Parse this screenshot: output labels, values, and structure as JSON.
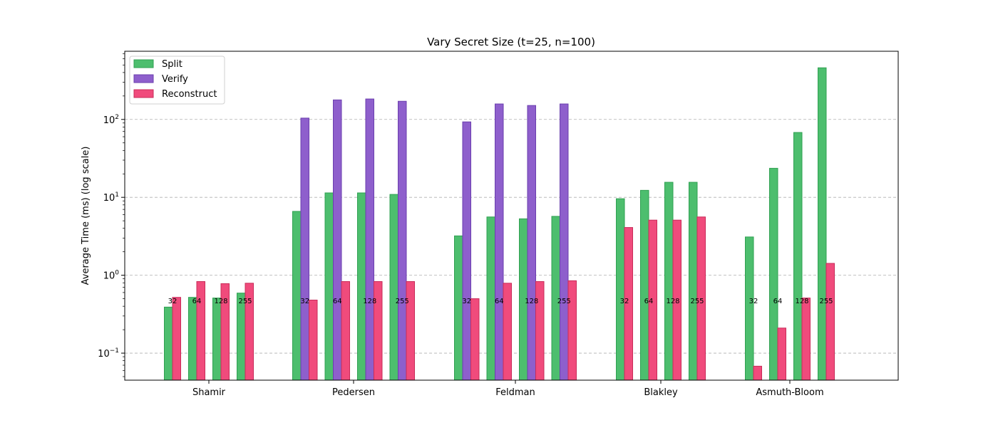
{
  "colors": {
    "split": "#4dbe6e",
    "split_edge": "#2fa051",
    "verify": "#8e5fcc",
    "verify_edge": "#6b3fae",
    "reconstruct": "#f04b7c",
    "reconstruct_edge": "#c92c59",
    "grid": "#b0b0b0"
  },
  "chart_data": {
    "type": "bar",
    "title": "Vary Secret Size (t=25, n=100)",
    "xlabel": "",
    "ylabel": "Average Time (ms) (log scale)",
    "yscale": "log",
    "ylim": [
      0.045,
      750
    ],
    "yticks": [
      {
        "value": 0.1,
        "base": "10",
        "exp": "−1"
      },
      {
        "value": 1,
        "base": "10",
        "exp": "0"
      },
      {
        "value": 10,
        "base": "10",
        "exp": "1"
      },
      {
        "value": 100,
        "base": "10",
        "exp": "2"
      }
    ],
    "grid": "y-major-dashed",
    "legend_position": "top-left",
    "series": [
      {
        "key": "split",
        "name": "Split"
      },
      {
        "key": "verify",
        "name": "Verify"
      },
      {
        "key": "reconstruct",
        "name": "Reconstruct"
      }
    ],
    "secret_sizes": [
      "32",
      "64",
      "128",
      "255"
    ],
    "groups": [
      {
        "scheme": "Shamir",
        "values": [
          {
            "size": "32",
            "split": 0.39,
            "reconstruct": 0.52
          },
          {
            "size": "64",
            "split": 0.52,
            "reconstruct": 0.83
          },
          {
            "size": "128",
            "split": 0.51,
            "reconstruct": 0.78
          },
          {
            "size": "255",
            "split": 0.59,
            "reconstruct": 0.79
          }
        ]
      },
      {
        "scheme": "Pedersen",
        "values": [
          {
            "size": "32",
            "split": 6.6,
            "verify": 104,
            "reconstruct": 0.48
          },
          {
            "size": "64",
            "split": 11.4,
            "verify": 178,
            "reconstruct": 0.83
          },
          {
            "size": "128",
            "split": 11.4,
            "verify": 183,
            "reconstruct": 0.83
          },
          {
            "size": "255",
            "split": 10.9,
            "verify": 171,
            "reconstruct": 0.83
          }
        ]
      },
      {
        "scheme": "Feldman",
        "values": [
          {
            "size": "32",
            "split": 3.2,
            "verify": 93,
            "reconstruct": 0.5
          },
          {
            "size": "64",
            "split": 5.6,
            "verify": 158,
            "reconstruct": 0.79
          },
          {
            "size": "128",
            "split": 5.3,
            "verify": 151,
            "reconstruct": 0.83
          },
          {
            "size": "255",
            "split": 5.7,
            "verify": 158,
            "reconstruct": 0.85
          }
        ]
      },
      {
        "scheme": "Blakley",
        "values": [
          {
            "size": "32",
            "split": 9.6,
            "reconstruct": 4.1
          },
          {
            "size": "64",
            "split": 12.3,
            "reconstruct": 5.1
          },
          {
            "size": "128",
            "split": 15.6,
            "reconstruct": 5.1
          },
          {
            "size": "255",
            "split": 15.6,
            "reconstruct": 5.6
          }
        ]
      },
      {
        "scheme": "Asmuth-Bloom",
        "values": [
          {
            "size": "32",
            "split": 3.1,
            "reconstruct": 0.068
          },
          {
            "size": "64",
            "split": 23.6,
            "reconstruct": 0.21
          },
          {
            "size": "128",
            "split": 68,
            "reconstruct": 0.51
          },
          {
            "size": "255",
            "split": 460,
            "reconstruct": 1.42
          }
        ]
      }
    ]
  }
}
